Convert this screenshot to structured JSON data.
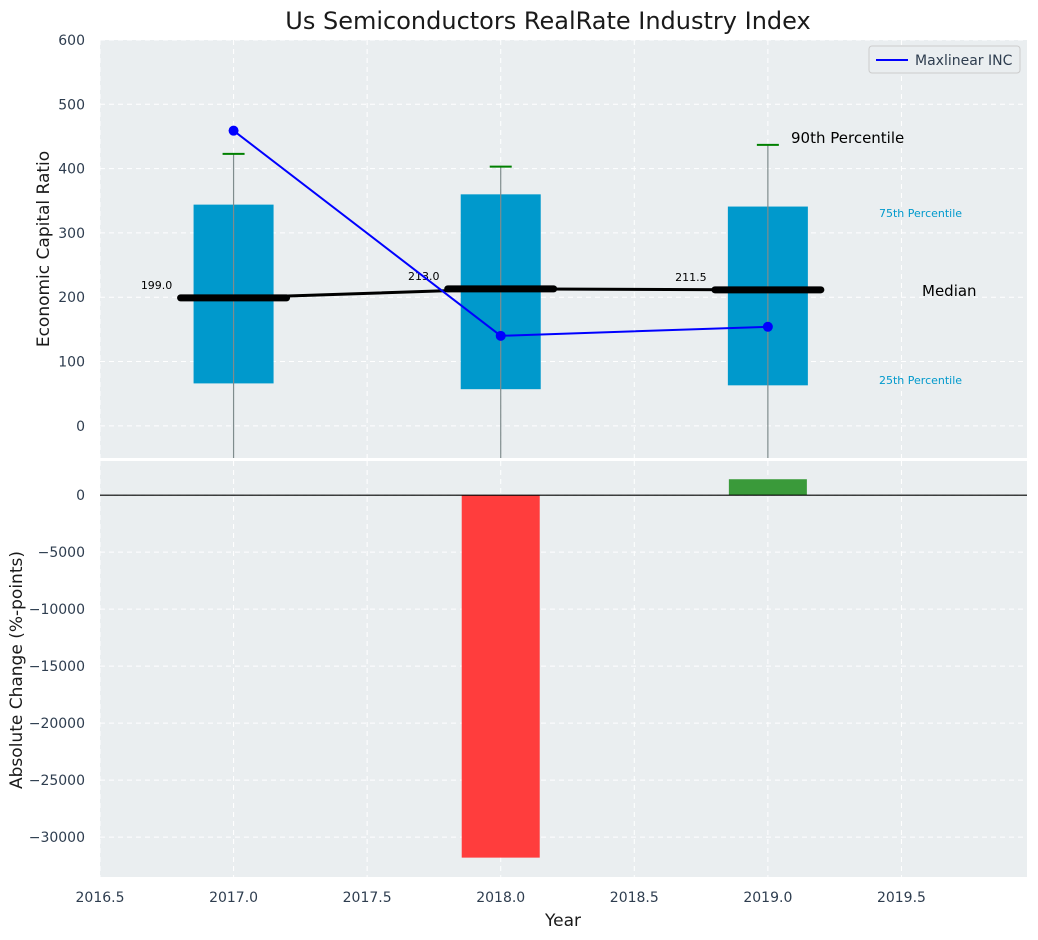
{
  "chart_data": [
    {
      "type": "box_line",
      "title": "Us Semiconductors RealRate Industry Index",
      "ylabel": "Economic Capital Ratio",
      "xlabel": "",
      "xlim": [
        2016.5,
        2019.97
      ],
      "ylim": [
        -50,
        600
      ],
      "yticks": [
        0,
        100,
        200,
        300,
        400,
        500,
        600
      ],
      "grid": true,
      "boxes": [
        {
          "x": 2017,
          "p25": 66,
          "median": 199.0,
          "p75": 344,
          "p90": 423
        },
        {
          "x": 2018,
          "p25": 57,
          "median": 213.0,
          "p75": 360,
          "p90": 403
        },
        {
          "x": 2019,
          "p25": 63,
          "median": 211.5,
          "p75": 341,
          "p90": 437
        }
      ],
      "median_labels": [
        "199.0",
        "213.0",
        "211.5"
      ],
      "series": [
        {
          "name": "Maxlinear INC",
          "x": [
            2017,
            2018,
            2019
          ],
          "values": [
            459,
            140,
            154
          ],
          "color": "#0000ff"
        }
      ],
      "legend": {
        "position": "top-right",
        "entries": [
          "Maxlinear INC"
        ]
      },
      "annotations": {
        "p90": "90th Percentile",
        "p75": "75th Percentile",
        "median": "Median",
        "p25": "25th Percentile"
      }
    },
    {
      "type": "bar",
      "ylabel": "Absolute Change (%-points)",
      "xlabel": "Year",
      "xlim": [
        2016.5,
        2019.97
      ],
      "ylim": [
        -33500,
        3000
      ],
      "xticks": [
        2016.5,
        2017.0,
        2017.5,
        2018.0,
        2018.5,
        2019.0,
        2019.5
      ],
      "xtick_labels": [
        "2016.5",
        "2017.0",
        "2017.5",
        "2018.0",
        "2018.5",
        "2019.0",
        "2019.5"
      ],
      "yticks": [
        0,
        -5000,
        -10000,
        -15000,
        -20000,
        -25000,
        -30000
      ],
      "ytick_labels": [
        "0",
        "−5000",
        "−10000",
        "−15000",
        "−20000",
        "−25000",
        "−30000"
      ],
      "x": [
        2018,
        2019
      ],
      "values": [
        -31800,
        1400
      ],
      "colors": {
        "negative": "#ff3d3d",
        "positive": "#3a9a3a"
      },
      "grid": true
    }
  ],
  "colors": {
    "plot_bg": "#eaeef0",
    "box": "#0099cc",
    "whisker": "#7f8c8d",
    "p90_cap": "#008000",
    "median": "#000000",
    "series": "#0000ff"
  }
}
